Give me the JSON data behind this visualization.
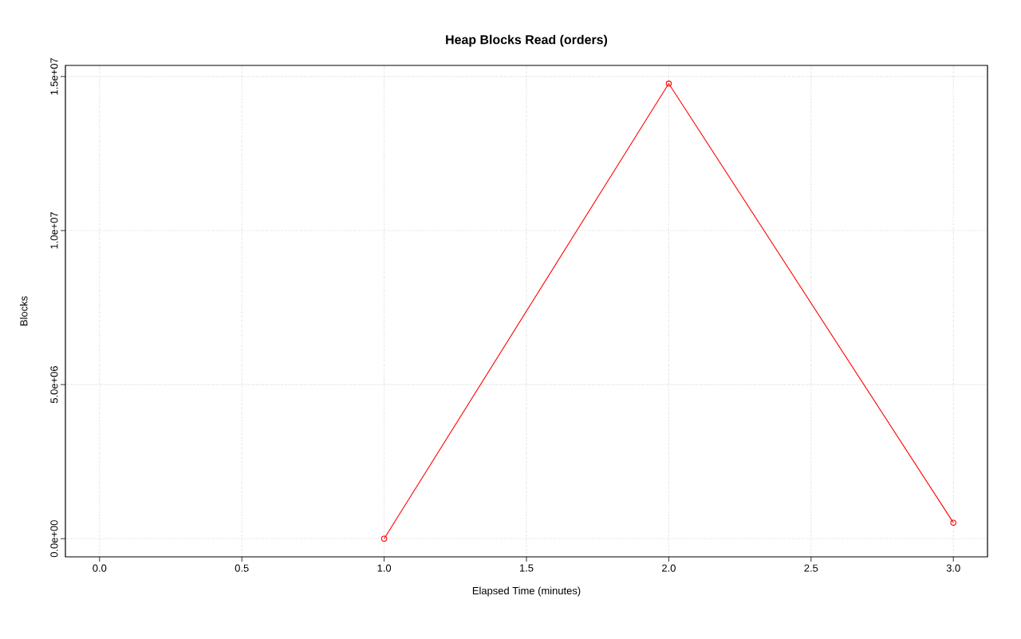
{
  "chart_data": {
    "type": "line",
    "title": "Heap Blocks Read (orders)",
    "xlabel": "Elapsed Time (minutes)",
    "ylabel": "Blocks",
    "x": [
      1,
      2,
      3
    ],
    "series": [
      {
        "color": "#ff0000",
        "values": [
          0,
          14770000,
          520000
        ]
      }
    ],
    "xlim": [
      -0.12,
      3.12
    ],
    "ylim": [
      -590000,
      15360000
    ],
    "xticks": [
      {
        "value": 0,
        "label": "0.0"
      },
      {
        "value": 0.5,
        "label": "0.5"
      },
      {
        "value": 1,
        "label": "1.0"
      },
      {
        "value": 1.5,
        "label": "1.5"
      },
      {
        "value": 2,
        "label": "2.0"
      },
      {
        "value": 2.5,
        "label": "2.5"
      },
      {
        "value": 3,
        "label": "3.0"
      }
    ],
    "yticks": [
      {
        "value": 0,
        "label": "0.0e+00"
      },
      {
        "value": 5000000,
        "label": "5.0e+06"
      },
      {
        "value": 10000000,
        "label": "1.0e+07"
      },
      {
        "value": 15000000,
        "label": "1.5e+07"
      }
    ],
    "grid": true,
    "marker": "circle",
    "line_style": "solid"
  }
}
